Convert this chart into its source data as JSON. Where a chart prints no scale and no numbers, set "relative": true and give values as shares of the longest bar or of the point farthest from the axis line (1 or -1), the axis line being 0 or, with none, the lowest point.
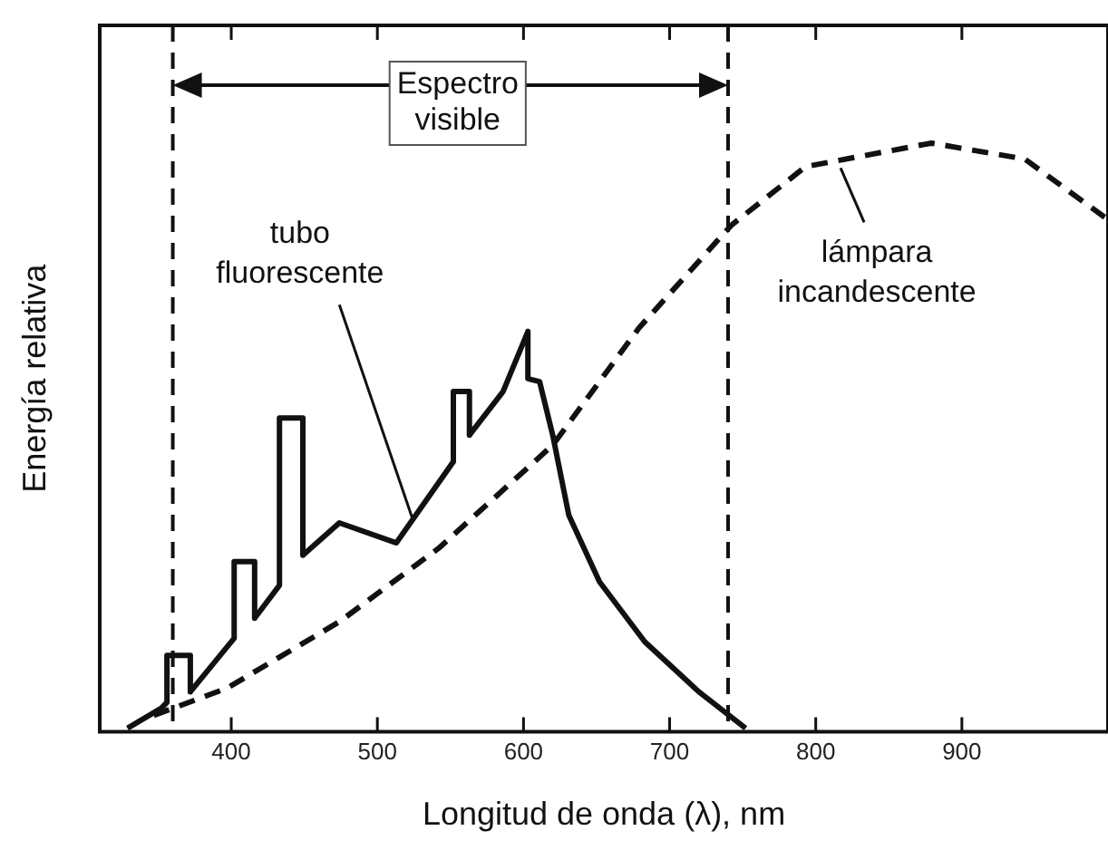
{
  "chart_data": {
    "type": "line",
    "xlabel": "Longitud de onda (λ), nm",
    "ylabel": "Energía relativa",
    "relative": true,
    "legend": false,
    "grid": false,
    "marker": "none",
    "xlim": [
      310,
      1000
    ],
    "xticks": [
      400,
      500,
      600,
      700,
      800,
      900
    ],
    "series": [
      {
        "color": "#111111",
        "line_style": "solid",
        "x": [
          329,
          352,
          356,
          356,
          372,
          372,
          402,
          402,
          416,
          416,
          433,
          433,
          449,
          449,
          474,
          513,
          552,
          552,
          563,
          563,
          586,
          603,
          603,
          611,
          620,
          631,
          652,
          683,
          720,
          752
        ],
        "values": [
          0.006,
          0.04,
          0.05,
          0.13,
          0.13,
          0.068,
          0.159,
          0.289,
          0.289,
          0.193,
          0.249,
          0.533,
          0.533,
          0.3,
          0.355,
          0.321,
          0.459,
          0.578,
          0.578,
          0.504,
          0.578,
          0.68,
          0.6,
          0.595,
          0.504,
          0.368,
          0.255,
          0.153,
          0.068,
          0.006
        ]
      },
      {
        "color": "#111111",
        "line_style": "dashed",
        "x": [
          347,
          397,
          474,
          542,
          620,
          679,
          742,
          793,
          879,
          943,
          1000
        ],
        "values": [
          0.028,
          0.074,
          0.187,
          0.312,
          0.487,
          0.686,
          0.86,
          0.96,
          1.0,
          0.973,
          0.87
        ]
      }
    ],
    "ref_lines": [
      {
        "axis": "x",
        "value": 360,
        "line_style": "dashed"
      },
      {
        "axis": "x",
        "value": 740,
        "line_style": "dashed"
      }
    ],
    "annotations": [
      "Espectro visible",
      {
        "text": "tubo fluorescente",
        "x": 524,
        "y": 0.35
      },
      {
        "text": "lámpara incandescente",
        "x": 817,
        "y": 0.97
      }
    ]
  }
}
